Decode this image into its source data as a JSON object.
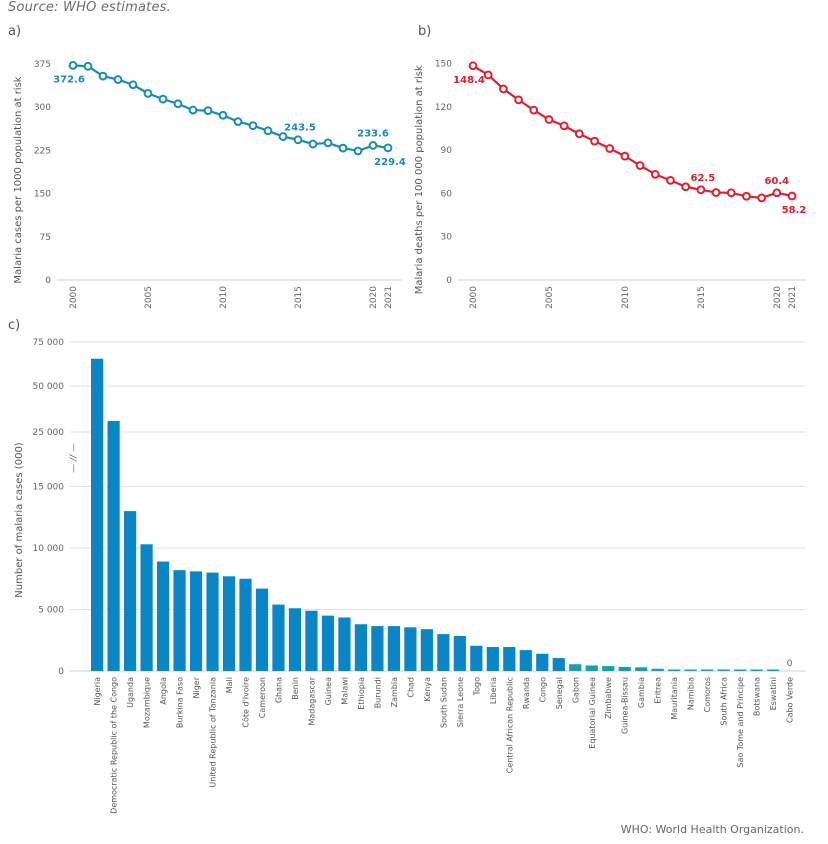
{
  "source": "Source: WHO estimates.",
  "footnote": "WHO: World Health Organization.",
  "colors": {
    "cases_line": "#1a8bb3",
    "deaths_line": "#e0202e",
    "bar": "#0a86c6",
    "bar_small": "#17a0a8",
    "grid": "#e2e2e2",
    "axis": "#d0d0d0"
  },
  "chart_data": [
    {
      "panel": "a)",
      "type": "line",
      "ylabel": "Malaria cases per 1000 population at risk",
      "xlabel": "",
      "ylim": [
        0,
        375
      ],
      "yticks": [
        0,
        75,
        150,
        225,
        300,
        375
      ],
      "xticks": [
        2000,
        2005,
        2010,
        2015,
        2020,
        2021
      ],
      "grid": false,
      "x": [
        2000,
        2001,
        2002,
        2003,
        2004,
        2005,
        2006,
        2007,
        2008,
        2009,
        2010,
        2011,
        2012,
        2013,
        2014,
        2015,
        2016,
        2017,
        2018,
        2019,
        2020,
        2021
      ],
      "values": [
        372.6,
        371,
        354,
        348,
        339,
        324,
        314,
        306,
        295,
        294,
        286,
        275,
        268,
        259,
        249,
        243.5,
        236,
        238,
        229,
        224,
        233.6,
        229.4
      ],
      "annotations": [
        {
          "year": 2000,
          "text": "372.6",
          "pos": "below"
        },
        {
          "year": 2015,
          "text": "243.5",
          "pos": "above"
        },
        {
          "year": 2020,
          "text": "233.6",
          "pos": "above"
        },
        {
          "year": 2021,
          "text": "229.4",
          "pos": "below"
        }
      ]
    },
    {
      "panel": "b)",
      "type": "line",
      "ylabel": "Malaria deaths per 100 000 population at risk",
      "xlabel": "",
      "ylim": [
        0,
        150
      ],
      "yticks": [
        0,
        30,
        60,
        90,
        120,
        150
      ],
      "xticks": [
        2000,
        2005,
        2010,
        2015,
        2020,
        2021
      ],
      "grid": false,
      "x": [
        2000,
        2001,
        2002,
        2003,
        2004,
        2005,
        2006,
        2007,
        2008,
        2009,
        2010,
        2011,
        2012,
        2013,
        2014,
        2015,
        2016,
        2017,
        2018,
        2019,
        2020,
        2021
      ],
      "values": [
        148.4,
        142.1,
        132.4,
        124.8,
        117.7,
        111.2,
        106.8,
        101.3,
        96.2,
        91.1,
        85.8,
        79.3,
        73.2,
        69.0,
        64.6,
        62.5,
        60.6,
        60.4,
        58.0,
        56.9,
        60.4,
        58.2
      ],
      "annotations": [
        {
          "year": 2000,
          "text": "148.4",
          "pos": "below"
        },
        {
          "year": 2015,
          "text": "62.5",
          "pos": "above"
        },
        {
          "year": 2020,
          "text": "60.4",
          "pos": "above"
        },
        {
          "year": 2021,
          "text": "58.2",
          "pos": "below"
        }
      ]
    },
    {
      "panel": "c)",
      "type": "bar",
      "ylabel": "Number of malaria cases (000)",
      "xlabel": "",
      "axis_break": "— // —",
      "yticks": [
        0,
        5000,
        10000,
        15000,
        25000,
        50000,
        75000
      ],
      "ytick_labels": [
        "0",
        "5 000",
        "10 000",
        "15 000",
        "25 000",
        "50 000",
        "75 000"
      ],
      "grid": true,
      "categories": [
        "Nigeria",
        "Democratic Republic of the Congo",
        "Uganda",
        "Mozambique",
        "Angola",
        "Burkina Faso",
        "Niger",
        "United Republic of Tanzania",
        "Mali",
        "Côte d'Ivoire",
        "Cameroon",
        "Ghana",
        "Benin",
        "Madagascar",
        "Guinea",
        "Malawi",
        "Ethiopia",
        "Burundi",
        "Zambia",
        "Chad",
        "Kenya",
        "South Sudan",
        "Sierra Leone",
        "Togo",
        "Liberia",
        "Central African Republic",
        "Rwanda",
        "Congo",
        "Senegal",
        "Gabon",
        "Equatorial Guinea",
        "Zimbabwe",
        "Guinea-Bissau",
        "Gambia",
        "Eritrea",
        "Mauritania",
        "Namibia",
        "Comoros",
        "South Africa",
        "Sao Tome and Principe",
        "Botswana",
        "Eswatini",
        "Cabo Verde"
      ],
      "values": [
        65500,
        31000,
        13000,
        10300,
        8900,
        8200,
        8100,
        8000,
        7700,
        7500,
        6700,
        5400,
        5100,
        4900,
        4500,
        4350,
        3800,
        3650,
        3650,
        3550,
        3400,
        3000,
        2850,
        2050,
        1950,
        1950,
        1700,
        1400,
        1050,
        550,
        450,
        400,
        330,
        300,
        180,
        90,
        60,
        50,
        40,
        30,
        20,
        10,
        0
      ],
      "annotations": [
        {
          "category": "Cabo Verde",
          "text": "0"
        }
      ]
    }
  ]
}
